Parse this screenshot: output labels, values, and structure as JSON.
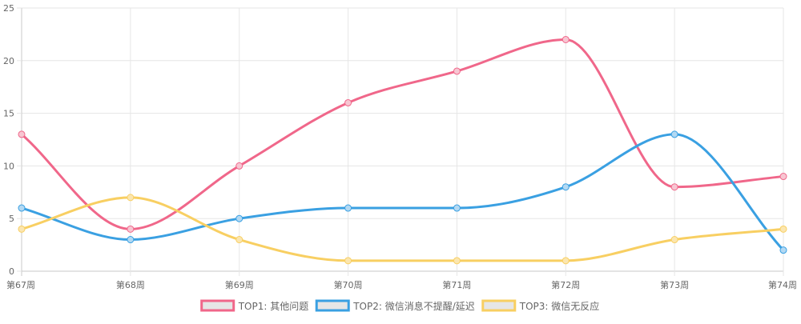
{
  "chart_data": {
    "type": "line",
    "categories": [
      "第67周",
      "第68周",
      "第69周",
      "第70周",
      "第71周",
      "第72周",
      "第73周",
      "第74周"
    ],
    "series": [
      {
        "name": "TOP1: 其他问题",
        "values": [
          13,
          4,
          10,
          16,
          19,
          22,
          8,
          9
        ],
        "color": "#f0678a",
        "fill": "#f7c6d2"
      },
      {
        "name": "TOP2: 微信消息不提醒/延迟",
        "values": [
          6,
          3,
          5,
          6,
          6,
          8,
          13,
          2
        ],
        "color": "#3aa0e2",
        "fill": "#b3d9f3"
      },
      {
        "name": "TOP3: 微信无反应",
        "values": [
          4,
          7,
          3,
          1,
          1,
          1,
          3,
          4
        ],
        "color": "#f8cf62",
        "fill": "#fbe6b0"
      }
    ],
    "ylim": [
      0,
      25
    ],
    "yticks": [
      0,
      5,
      10,
      15,
      20,
      25
    ],
    "grid": true,
    "legend": "bottom",
    "legend_box_fill": "#e6e6e6"
  }
}
